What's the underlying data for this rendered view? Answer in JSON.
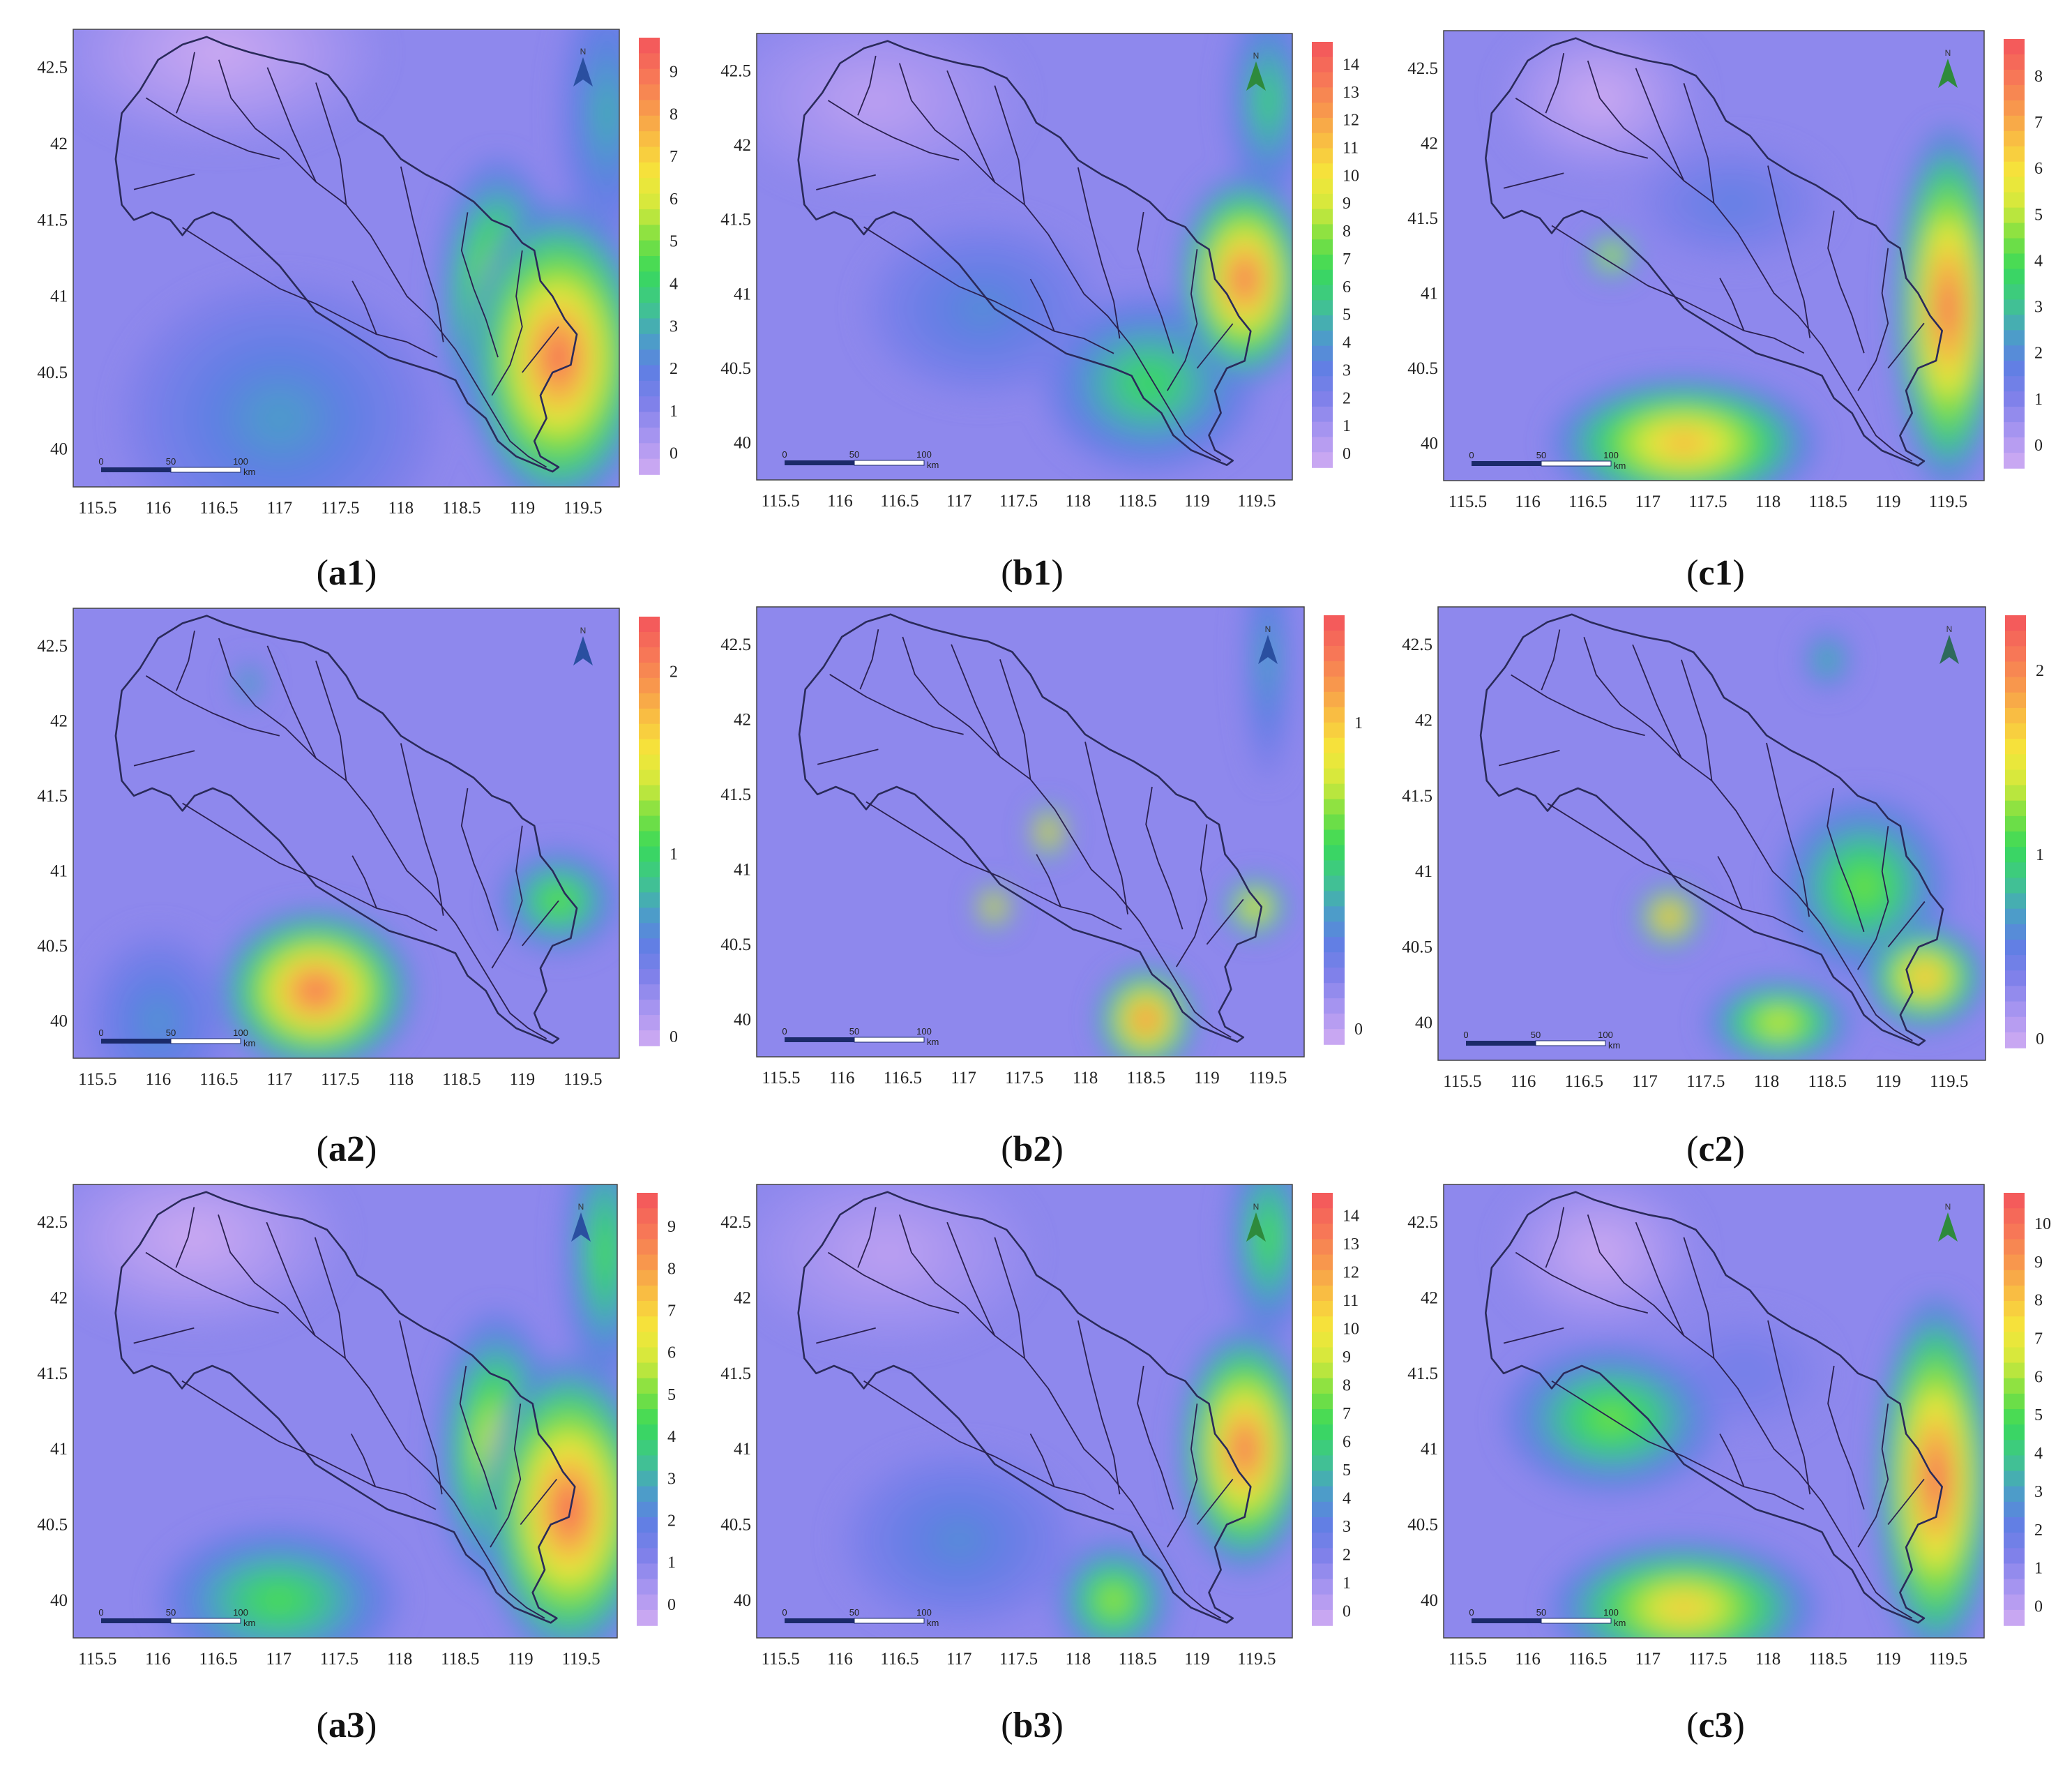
{
  "axes": {
    "x_ticks": [
      "115.5",
      "116",
      "116.5",
      "117",
      "117.5",
      "118",
      "118.5",
      "119",
      "119.5"
    ],
    "x_values": [
      115.5,
      116,
      116.5,
      117,
      117.5,
      118,
      118.5,
      119,
      119.5
    ],
    "y_ticks": [
      "42.5",
      "42",
      "41.5",
      "41",
      "40.5",
      "40"
    ],
    "y_values": [
      42.5,
      42,
      41.5,
      41,
      40.5,
      40
    ],
    "xlim": [
      115.3,
      119.8
    ],
    "ylim": [
      39.75,
      42.75
    ]
  },
  "north_label": "N",
  "scale_bar": {
    "labels": [
      "0",
      "50",
      "100"
    ],
    "unit": "km"
  },
  "palette": [
    "#c8a7f2",
    "#a493f0",
    "#7d80ea",
    "#5f7fe3",
    "#4aa1c4",
    "#3fc78a",
    "#39d95a",
    "#7ce042",
    "#d2e83c",
    "#f5e63a",
    "#f9c142",
    "#f89a4c",
    "#f77857",
    "#f45b5b"
  ],
  "chart_data": [
    {
      "type": "heatmap",
      "panel": "a1",
      "caption": {
        "open": "(",
        "bold": "a1",
        "close": ")"
      },
      "colorbar": {
        "labels": [
          "0",
          "1",
          "2",
          "3",
          "4",
          "5",
          "6",
          "7",
          "8",
          "9"
        ],
        "min": -0.5,
        "max": 9.8
      },
      "north_color": "#2a4fa0",
      "hotspots": [
        {
          "lon": 119.3,
          "lat": 40.6,
          "value": 9.3,
          "sx": 0.75,
          "sy": 1.0
        },
        {
          "lon": 118.8,
          "lat": 41.0,
          "value": 6.5,
          "sx": 0.5,
          "sy": 0.9
        },
        {
          "lon": 119.7,
          "lat": 42.2,
          "value": 3.0,
          "sx": 0.4,
          "sy": 0.9
        },
        {
          "lon": 117.0,
          "lat": 40.2,
          "value": 2.5,
          "sx": 1.3,
          "sy": 0.9
        },
        {
          "lon": 116.5,
          "lat": 42.6,
          "value": -0.5,
          "sx": 1.3,
          "sy": 0.6
        }
      ]
    },
    {
      "type": "heatmap",
      "panel": "b1",
      "caption": {
        "open": "(",
        "bold": "b1",
        "close": ")"
      },
      "colorbar": {
        "labels": [
          "0",
          "1",
          "2",
          "3",
          "4",
          "5",
          "6",
          "7",
          "8",
          "9",
          "10",
          "11",
          "12",
          "13",
          "14"
        ],
        "min": -0.5,
        "max": 14.8
      },
      "north_color": "#2e8a3c",
      "hotspots": [
        {
          "lon": 119.4,
          "lat": 41.1,
          "value": 14.0,
          "sx": 0.55,
          "sy": 0.7
        },
        {
          "lon": 118.6,
          "lat": 40.4,
          "value": 6.5,
          "sx": 0.9,
          "sy": 0.6
        },
        {
          "lon": 119.6,
          "lat": 42.3,
          "value": 6.0,
          "sx": 0.35,
          "sy": 0.7
        },
        {
          "lon": 116.3,
          "lat": 42.3,
          "value": 0.0,
          "sx": 1.2,
          "sy": 0.6
        },
        {
          "lon": 117.2,
          "lat": 40.9,
          "value": 3.5,
          "sx": 1.0,
          "sy": 0.6
        }
      ]
    },
    {
      "type": "heatmap",
      "panel": "c1",
      "caption": {
        "open": "(",
        "bold": "c1",
        "close": ")"
      },
      "colorbar": {
        "labels": [
          "0",
          "1",
          "2",
          "3",
          "4",
          "5",
          "6",
          "7",
          "8"
        ],
        "min": -0.5,
        "max": 8.8
      },
      "north_color": "#2e8a3c",
      "hotspots": [
        {
          "lon": 119.5,
          "lat": 40.9,
          "value": 8.5,
          "sx": 0.45,
          "sy": 1.2
        },
        {
          "lon": 117.3,
          "lat": 40.0,
          "value": 7.0,
          "sx": 1.1,
          "sy": 0.45
        },
        {
          "lon": 116.7,
          "lat": 41.25,
          "value": 6.5,
          "sx": 0.2,
          "sy": 0.15
        },
        {
          "lon": 116.6,
          "lat": 42.3,
          "value": -0.5,
          "sx": 0.8,
          "sy": 0.5
        },
        {
          "lon": 117.7,
          "lat": 41.6,
          "value": 1.5,
          "sx": 0.8,
          "sy": 0.4
        }
      ]
    },
    {
      "type": "heatmap",
      "panel": "a2",
      "caption": {
        "open": "(",
        "bold": "a2",
        "close": ")"
      },
      "colorbar": {
        "labels": [
          "0",
          "1",
          "2"
        ],
        "min": -0.05,
        "max": 2.3
      },
      "north_color": "#2a4fa0",
      "hotspots": [
        {
          "lon": 117.3,
          "lat": 40.2,
          "value": 2.2,
          "sx": 0.8,
          "sy": 0.55
        },
        {
          "lon": 119.3,
          "lat": 40.8,
          "value": 1.2,
          "sx": 0.5,
          "sy": 0.35
        },
        {
          "lon": 116.75,
          "lat": 42.25,
          "value": 0.9,
          "sx": 0.12,
          "sy": 0.15
        },
        {
          "lon": 116.0,
          "lat": 40.0,
          "value": 0.6,
          "sx": 0.6,
          "sy": 0.6
        }
      ]
    },
    {
      "type": "heatmap",
      "panel": "b2",
      "caption": {
        "open": "(",
        "bold": "b2",
        "close": ")"
      },
      "colorbar": {
        "labels": [
          "0",
          "1"
        ],
        "min": -0.05,
        "max": 1.35
      },
      "north_color": "#2a4fa0",
      "hotspots": [
        {
          "lon": 118.5,
          "lat": 40.0,
          "value": 1.3,
          "sx": 0.4,
          "sy": 0.35
        },
        {
          "lon": 117.7,
          "lat": 41.25,
          "value": 1.3,
          "sx": 0.15,
          "sy": 0.18
        },
        {
          "lon": 117.25,
          "lat": 40.75,
          "value": 1.3,
          "sx": 0.15,
          "sy": 0.15
        },
        {
          "lon": 119.4,
          "lat": 40.75,
          "value": 1.1,
          "sx": 0.25,
          "sy": 0.2
        },
        {
          "lon": 119.5,
          "lat": 42.4,
          "value": 0.4,
          "sx": 0.2,
          "sy": 0.8
        }
      ]
    },
    {
      "type": "heatmap",
      "panel": "c2",
      "caption": {
        "open": "(",
        "bold": "c2",
        "close": ")"
      },
      "colorbar": {
        "labels": [
          "0",
          "1",
          "2"
        ],
        "min": -0.05,
        "max": 2.3
      },
      "north_color": "#2e6a5c",
      "hotspots": [
        {
          "lon": 117.2,
          "lat": 40.7,
          "value": 2.2,
          "sx": 0.25,
          "sy": 0.2
        },
        {
          "lon": 119.3,
          "lat": 40.3,
          "value": 1.9,
          "sx": 0.5,
          "sy": 0.35
        },
        {
          "lon": 118.8,
          "lat": 40.9,
          "value": 1.2,
          "sx": 0.7,
          "sy": 0.6
        },
        {
          "lon": 118.1,
          "lat": 40.0,
          "value": 1.5,
          "sx": 0.6,
          "sy": 0.3
        },
        {
          "lon": 118.5,
          "lat": 42.4,
          "value": 0.9,
          "sx": 0.2,
          "sy": 0.2
        }
      ]
    },
    {
      "type": "heatmap",
      "panel": "a3",
      "caption": {
        "open": "(",
        "bold": "a3",
        "close": ")"
      },
      "colorbar": {
        "labels": [
          "0",
          "1",
          "2",
          "3",
          "4",
          "5",
          "6",
          "7",
          "8",
          "9"
        ],
        "min": -0.5,
        "max": 9.8
      },
      "north_color": "#2a4fa0",
      "hotspots": [
        {
          "lon": 119.4,
          "lat": 40.6,
          "value": 9.5,
          "sx": 0.7,
          "sy": 1.0
        },
        {
          "lon": 118.8,
          "lat": 41.0,
          "value": 6.5,
          "sx": 0.5,
          "sy": 0.9
        },
        {
          "lon": 117.0,
          "lat": 40.0,
          "value": 4.5,
          "sx": 1.0,
          "sy": 0.5
        },
        {
          "lon": 119.7,
          "lat": 42.3,
          "value": 4.5,
          "sx": 0.35,
          "sy": 0.9
        },
        {
          "lon": 116.3,
          "lat": 42.4,
          "value": -0.5,
          "sx": 1.2,
          "sy": 0.6
        }
      ]
    },
    {
      "type": "heatmap",
      "panel": "b3",
      "caption": {
        "open": "(",
        "bold": "b3",
        "close": ")"
      },
      "colorbar": {
        "labels": [
          "0",
          "1",
          "2",
          "3",
          "4",
          "5",
          "6",
          "7",
          "8",
          "9",
          "10",
          "11",
          "12",
          "13",
          "14"
        ],
        "min": -0.5,
        "max": 14.8
      },
      "north_color": "#2e8a3c",
      "hotspots": [
        {
          "lon": 119.4,
          "lat": 41.0,
          "value": 14.0,
          "sx": 0.55,
          "sy": 0.8
        },
        {
          "lon": 118.3,
          "lat": 40.0,
          "value": 8.5,
          "sx": 0.5,
          "sy": 0.4
        },
        {
          "lon": 119.6,
          "lat": 42.4,
          "value": 7.0,
          "sx": 0.35,
          "sy": 0.7
        },
        {
          "lon": 116.4,
          "lat": 42.3,
          "value": 0.0,
          "sx": 1.2,
          "sy": 0.6
        },
        {
          "lon": 117.0,
          "lat": 40.4,
          "value": 3.5,
          "sx": 1.0,
          "sy": 0.6
        }
      ]
    },
    {
      "type": "heatmap",
      "panel": "c3",
      "caption": {
        "open": "(",
        "bold": "c3",
        "close": ")"
      },
      "colorbar": {
        "labels": [
          "0",
          "1",
          "2",
          "3",
          "4",
          "5",
          "6",
          "7",
          "8",
          "9",
          "10"
        ],
        "min": -0.5,
        "max": 10.8
      },
      "north_color": "#2e8a3c",
      "hotspots": [
        {
          "lon": 119.4,
          "lat": 40.8,
          "value": 10.5,
          "sx": 0.5,
          "sy": 1.2
        },
        {
          "lon": 117.3,
          "lat": 39.95,
          "value": 8.0,
          "sx": 1.1,
          "sy": 0.45
        },
        {
          "lon": 116.7,
          "lat": 41.2,
          "value": 5.5,
          "sx": 0.9,
          "sy": 0.5
        },
        {
          "lon": 116.6,
          "lat": 42.3,
          "value": -0.5,
          "sx": 0.8,
          "sy": 0.5
        },
        {
          "lon": 117.8,
          "lat": 41.5,
          "value": 1.5,
          "sx": 0.7,
          "sy": 0.4
        }
      ]
    }
  ]
}
